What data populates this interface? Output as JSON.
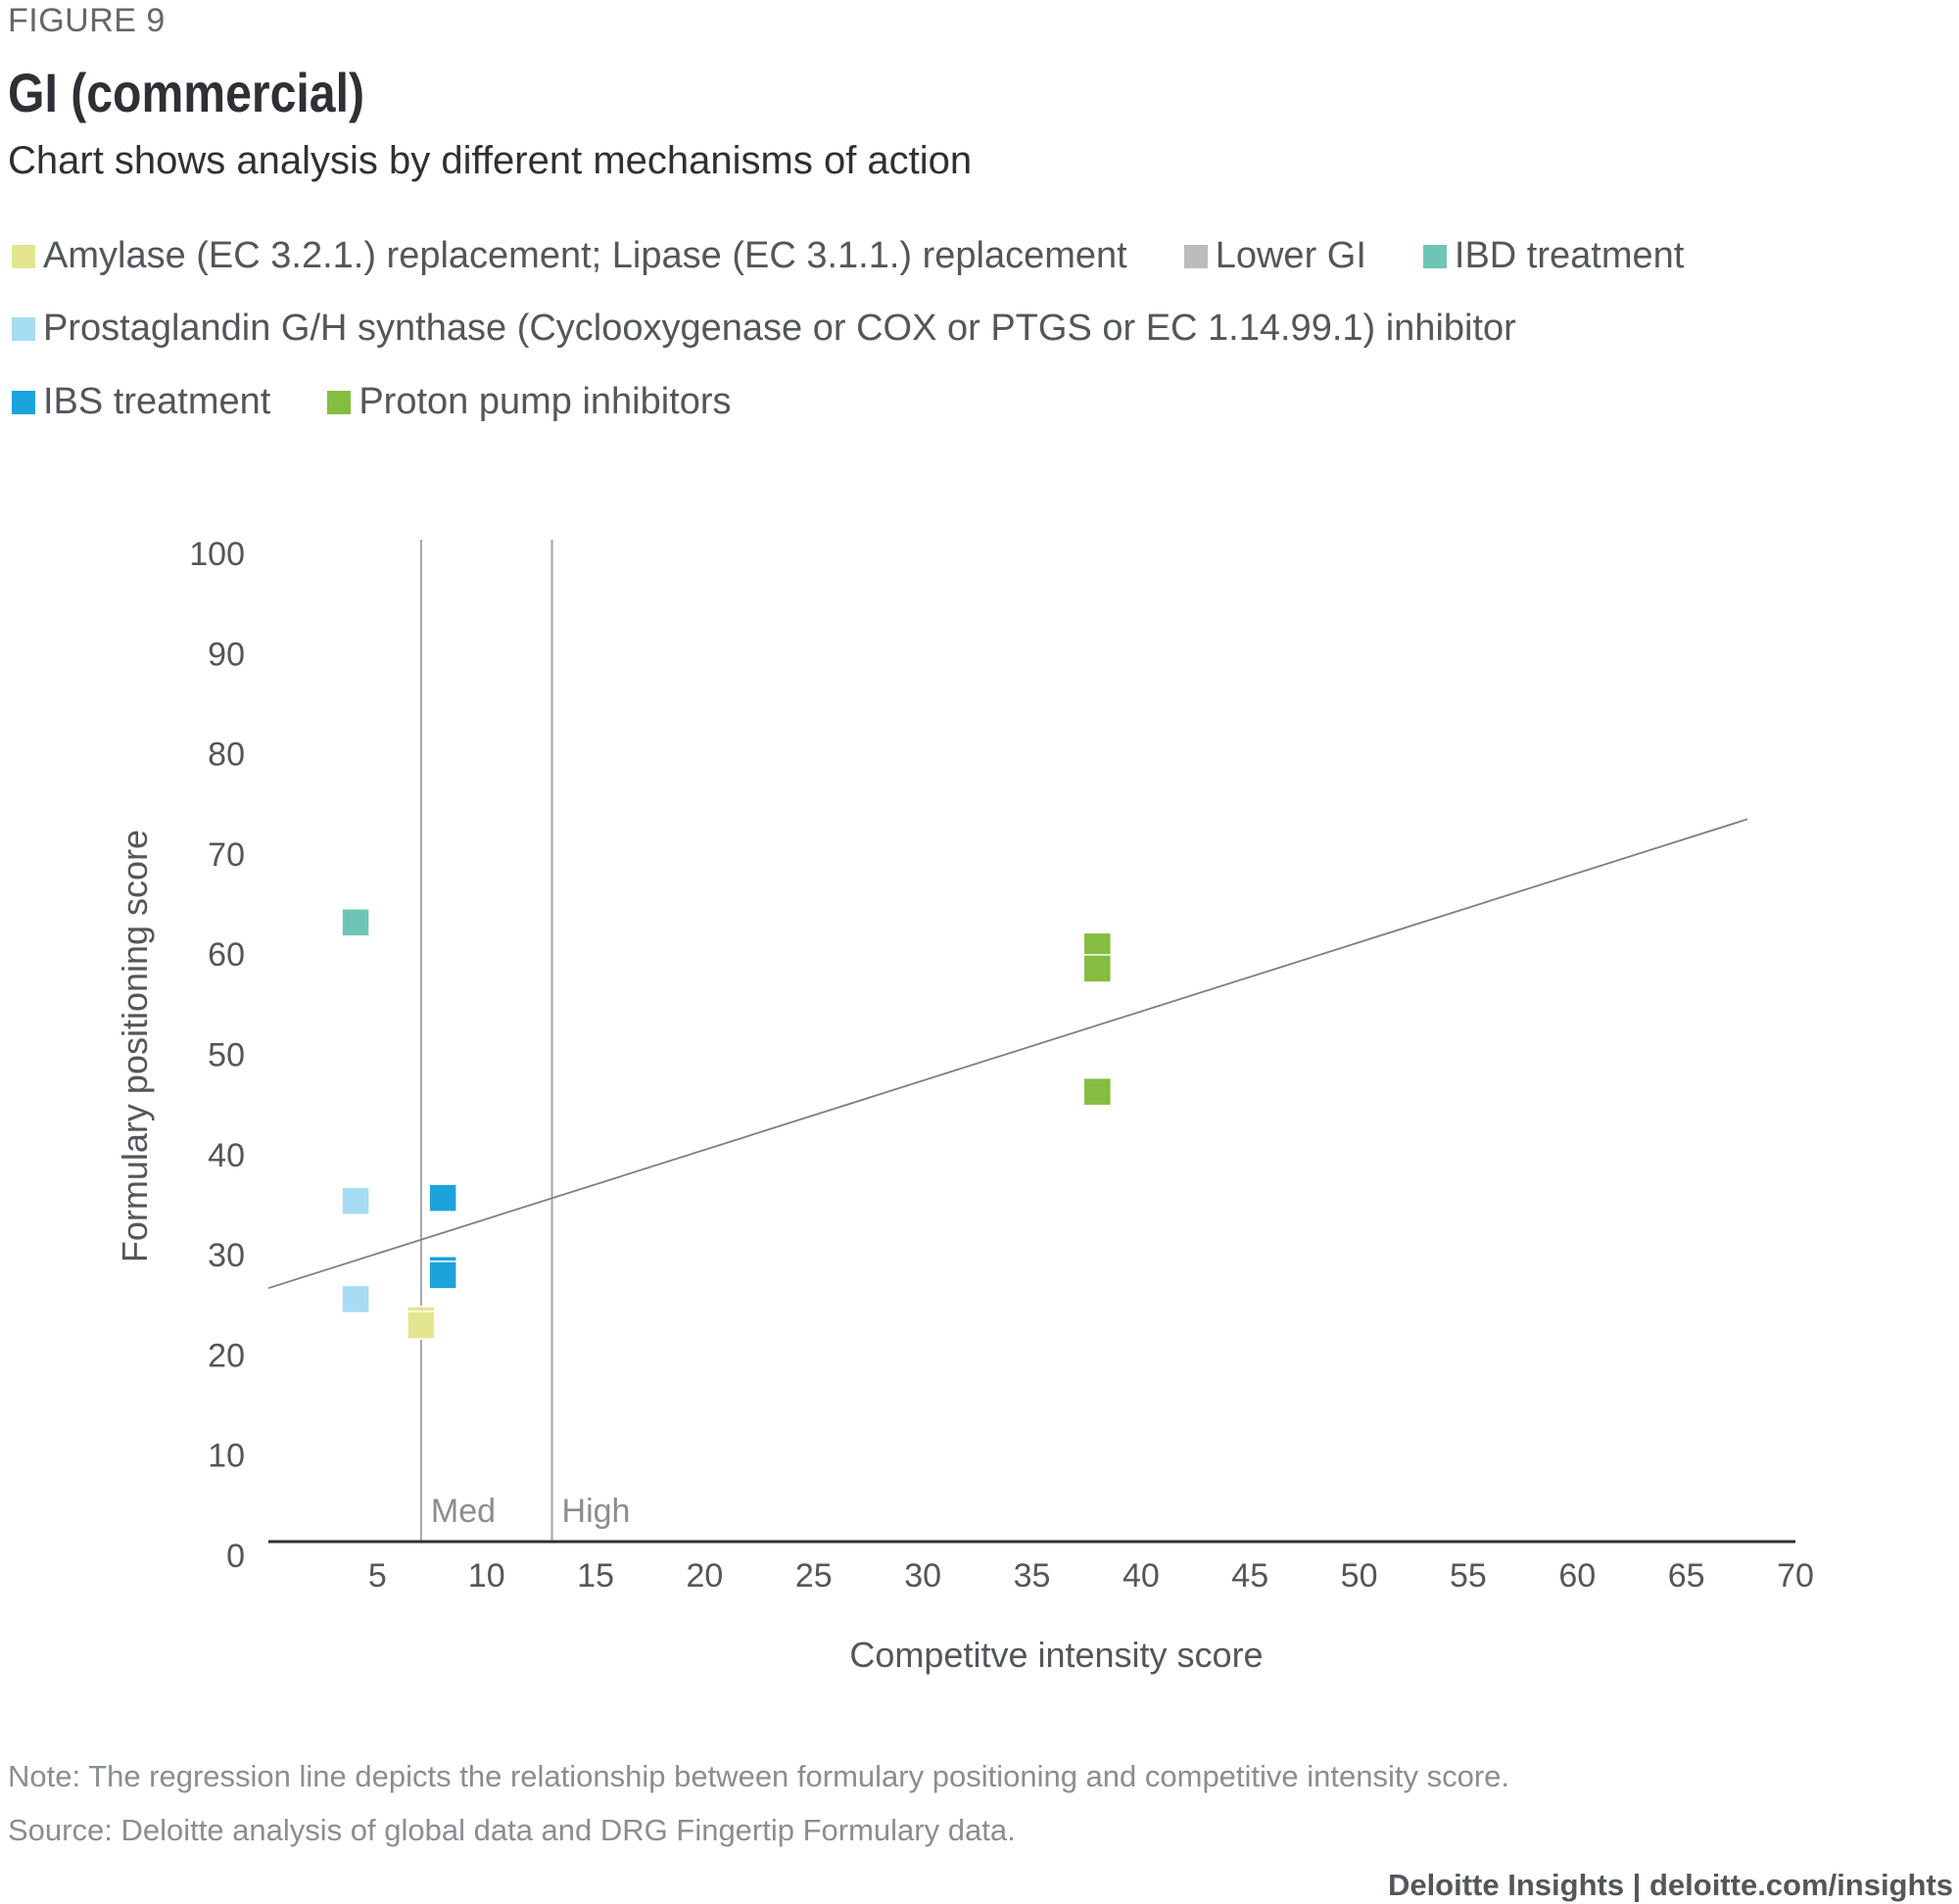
{
  "figure_label": "FIGURE 9",
  "title": "GI (commercial)",
  "subtitle": "Chart shows analysis by different mechanisms of action",
  "legend": [
    {
      "label": "Amylase (EC 3.2.1.) replacement; Lipase (EC 3.1.1.) replacement",
      "color": "#e3e68f"
    },
    {
      "label": "Lower GI",
      "color": "#bbbcbc"
    },
    {
      "label": "IBD treatment",
      "color": "#6fc5b5"
    },
    {
      "label": "Prostaglandin G/H synthase (Cyclooxygenase or COX or PTGS or EC 1.14.99.1) inhibitor",
      "color": "#a7dcf5"
    },
    {
      "label": "IBS treatment",
      "color": "#1ca3dc"
    },
    {
      "label": "Proton pump inhibitors",
      "color": "#86bc40"
    }
  ],
  "note": "Note: The regression line depicts the relationship between formulary positioning and competitive intensity score.",
  "source": "Source: Deloitte analysis of global data and DRG Fingertip Formulary data.",
  "footer": "Deloitte Insights | deloitte.com/insights",
  "chart_data": {
    "type": "scatter",
    "title": "GI (commercial)",
    "xlabel": "Competitve intensity score",
    "ylabel": "Formulary positioning score",
    "xlim": [
      0,
      70
    ],
    "ylim": [
      0,
      100
    ],
    "x_ticks": [
      5,
      10,
      15,
      20,
      25,
      30,
      35,
      40,
      45,
      50,
      55,
      60,
      65,
      70
    ],
    "y_ticks": [
      0,
      10,
      20,
      30,
      40,
      50,
      60,
      70,
      80,
      90,
      100
    ],
    "grid": false,
    "legend_position": "top",
    "reference_lines": [
      {
        "x": 7,
        "label": "Med",
        "color": "#a6a6a6"
      },
      {
        "x": 13,
        "label": "High",
        "color": "#a6a6a6"
      }
    ],
    "regression_line": {
      "x": [
        0,
        67.8
      ],
      "y": [
        25.3,
        72.1
      ],
      "color": "#7f7f7f"
    },
    "series": [
      {
        "name": "Amylase (EC 3.2.1.) replacement; Lipase (EC 3.1.1.) replacement",
        "color": "#e3e68f",
        "points": [
          [
            7,
            22.1
          ],
          [
            7,
            21.6
          ]
        ]
      },
      {
        "name": "Lower GI",
        "color": "#bbbcbc",
        "points": []
      },
      {
        "name": "IBD treatment",
        "color": "#6fc5b5",
        "points": [
          [
            4,
            61.8
          ]
        ]
      },
      {
        "name": "Prostaglandin G/H synthase (Cyclooxygenase or COX or PTGS or EC 1.14.99.1) inhibitor",
        "color": "#a7dcf5",
        "points": [
          [
            4,
            34
          ],
          [
            4,
            24.2
          ]
        ]
      },
      {
        "name": "IBS treatment",
        "color": "#1ca3dc",
        "points": [
          [
            8,
            34.3
          ],
          [
            8,
            27.1
          ],
          [
            8,
            26.6
          ]
        ]
      },
      {
        "name": "Proton pump inhibitors",
        "color": "#86bc40",
        "points": [
          [
            38,
            59.4
          ],
          [
            38,
            57.2
          ],
          [
            38,
            44.9
          ]
        ]
      }
    ]
  }
}
